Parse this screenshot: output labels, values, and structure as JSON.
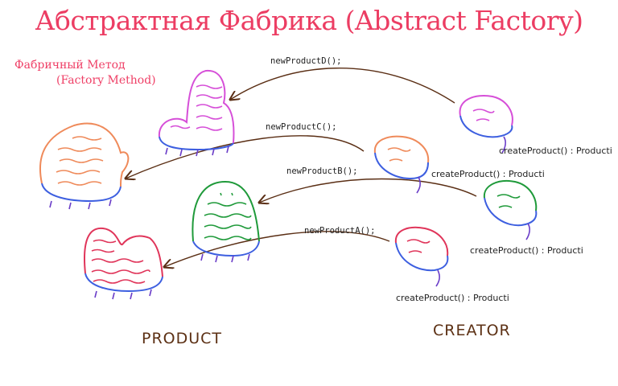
{
  "title": "Абстрактная Фабрика (Abstract Factory)",
  "factory_method_note": {
    "line1": "Фабричный Метод",
    "line2": "(Factory Method)"
  },
  "labels": {
    "product": "PRODUCT",
    "creator": "CREATOR"
  },
  "calls": [
    "newProductD();",
    "newProductC();",
    "newProductB();",
    "newProductA();"
  ],
  "creator_methods": [
    "createProduct() : Producti",
    "createProduct() : Producti",
    "createProduct() : Producti",
    "createProduct() : Producti"
  ],
  "colors": {
    "title": "#ec3d63",
    "label": "#5c3014",
    "arrow": "#5a2e14",
    "magenta": "#d64fd8",
    "orange": "#ef8a5a",
    "green": "#1f9a3a",
    "red": "#e0355a",
    "blue": "#3d5fe0",
    "purple": "#6a3dc8"
  }
}
